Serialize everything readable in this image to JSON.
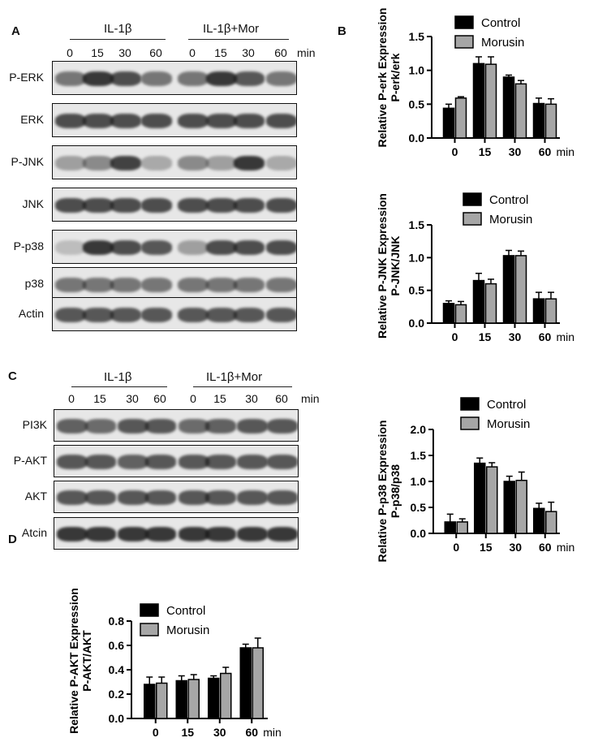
{
  "panels": {
    "a": "A",
    "b": "B",
    "c": "C",
    "d": "D"
  },
  "panel_a": {
    "group_left": "IL-1β",
    "group_right": "IL-1β+Mor",
    "times": [
      "0",
      "15",
      "30",
      "60",
      "0",
      "15",
      "30",
      "60"
    ],
    "unit": "min",
    "rows": [
      "P-ERK",
      "ERK",
      "P-JNK",
      "JNK",
      "P-p38",
      "p38",
      "Actin"
    ]
  },
  "panel_c": {
    "group_left": "IL-1β",
    "group_right": "IL-1β+Mor",
    "times": [
      "0",
      "15",
      "30",
      "60",
      "0",
      "15",
      "30",
      "60"
    ],
    "unit": "min",
    "rows": [
      "PI3K",
      "P-AKT",
      "AKT",
      "Atcin"
    ]
  },
  "colors": {
    "control": "#000000",
    "morusin": "#a6a6a6"
  },
  "chart_data": [
    {
      "type": "bar",
      "panel": "B",
      "ylabel_line1": "Relative P-erk Expression",
      "ylabel_line2": "P-erk/erk",
      "categories": [
        "0",
        "15",
        "30",
        "60"
      ],
      "x_unit": "min",
      "ylim": [
        0,
        1.5
      ],
      "yticks": [
        "0.0",
        "0.5",
        "1.0",
        "1.5"
      ],
      "series": [
        {
          "name": "Control",
          "values": [
            0.44,
            1.1,
            0.9,
            0.51
          ],
          "errors": [
            0.06,
            0.1,
            0.03,
            0.08
          ]
        },
        {
          "name": "Morusin",
          "values": [
            0.59,
            1.09,
            0.8,
            0.5
          ],
          "errors": [
            0.02,
            0.11,
            0.05,
            0.08
          ]
        }
      ]
    },
    {
      "type": "bar",
      "panel": "B",
      "ylabel_line1": "Relative P-JNK Expression",
      "ylabel_line2": "P-JNK/JNK",
      "categories": [
        "0",
        "15",
        "30",
        "60"
      ],
      "x_unit": "min",
      "ylim": [
        0,
        1.5
      ],
      "yticks": [
        "0.0",
        "0.5",
        "1.0",
        "1.5"
      ],
      "series": [
        {
          "name": "Control",
          "values": [
            0.3,
            0.65,
            1.03,
            0.37
          ],
          "errors": [
            0.04,
            0.11,
            0.08,
            0.1
          ]
        },
        {
          "name": "Morusin",
          "values": [
            0.28,
            0.6,
            1.03,
            0.37
          ],
          "errors": [
            0.05,
            0.07,
            0.07,
            0.1
          ]
        }
      ]
    },
    {
      "type": "bar",
      "panel": "B",
      "ylabel_line1": "Relative P-p38 Expression",
      "ylabel_line2": "P-p38/p38",
      "categories": [
        "0",
        "15",
        "30",
        "60"
      ],
      "x_unit": "min",
      "ylim": [
        0,
        2.0
      ],
      "yticks": [
        "0.0",
        "0.5",
        "1.0",
        "1.5",
        "2.0"
      ],
      "series": [
        {
          "name": "Control",
          "values": [
            0.22,
            1.35,
            1.0,
            0.48
          ],
          "errors": [
            0.15,
            0.1,
            0.1,
            0.1
          ]
        },
        {
          "name": "Morusin",
          "values": [
            0.22,
            1.28,
            1.02,
            0.42
          ],
          "errors": [
            0.06,
            0.08,
            0.16,
            0.18
          ]
        }
      ]
    },
    {
      "type": "bar",
      "panel": "D",
      "ylabel_line1": "Relative P-AKT Expression",
      "ylabel_line2": "P-AKT/AKT",
      "categories": [
        "0",
        "15",
        "30",
        "60"
      ],
      "x_unit": "min",
      "ylim": [
        0,
        0.8
      ],
      "yticks": [
        "0.0",
        "0.2",
        "0.4",
        "0.6",
        "0.8"
      ],
      "series": [
        {
          "name": "Control",
          "values": [
            0.28,
            0.31,
            0.33,
            0.58
          ],
          "errors": [
            0.06,
            0.04,
            0.02,
            0.03
          ]
        },
        {
          "name": "Morusin",
          "values": [
            0.29,
            0.32,
            0.37,
            0.58
          ],
          "errors": [
            0.05,
            0.04,
            0.05,
            0.08
          ]
        }
      ]
    }
  ]
}
